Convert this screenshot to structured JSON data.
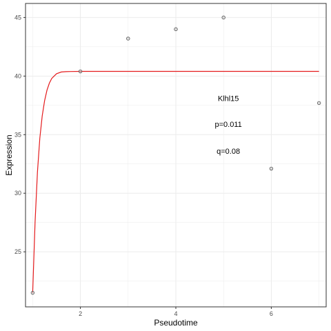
{
  "chart_data": {
    "type": "scatter",
    "xlabel": "Pseudotime",
    "ylabel": "Expression",
    "xlim": [
      0.85,
      7.15
    ],
    "ylim": [
      20.3,
      46.2
    ],
    "x_ticks": [
      2,
      4,
      6
    ],
    "y_ticks": [
      25,
      30,
      35,
      40,
      45
    ],
    "grid": true,
    "points": [
      {
        "x": 1,
        "y": 21.5
      },
      {
        "x": 2,
        "y": 40.4
      },
      {
        "x": 3,
        "y": 43.2
      },
      {
        "x": 4,
        "y": 44.0
      },
      {
        "x": 5,
        "y": 45.0
      },
      {
        "x": 6,
        "y": 32.1
      },
      {
        "x": 7,
        "y": 37.7
      }
    ],
    "fit_curve": {
      "color": "#e41a1c",
      "x": [
        1.0,
        1.05,
        1.1,
        1.15,
        1.2,
        1.25,
        1.3,
        1.35,
        1.4,
        1.5,
        1.6,
        1.7,
        1.8,
        2.0,
        2.5,
        3.0,
        4.0,
        5.0,
        6.0,
        7.0
      ],
      "y": [
        21.5,
        27.5,
        31.8,
        34.7,
        36.6,
        37.9,
        38.8,
        39.4,
        39.8,
        40.2,
        40.35,
        40.38,
        40.39,
        40.4,
        40.4,
        40.4,
        40.4,
        40.4,
        40.4,
        40.4
      ]
    },
    "annotations": [
      {
        "text": "Klhl15",
        "x": 5.1,
        "y": 38.1
      },
      {
        "text": "p=0.011",
        "x": 5.1,
        "y": 35.9
      },
      {
        "text": "q=0.08",
        "x": 5.1,
        "y": 33.6
      }
    ],
    "colors": {
      "point_stroke": "#555555",
      "grid": "#ebebeb",
      "panel_border": "#333333"
    }
  }
}
